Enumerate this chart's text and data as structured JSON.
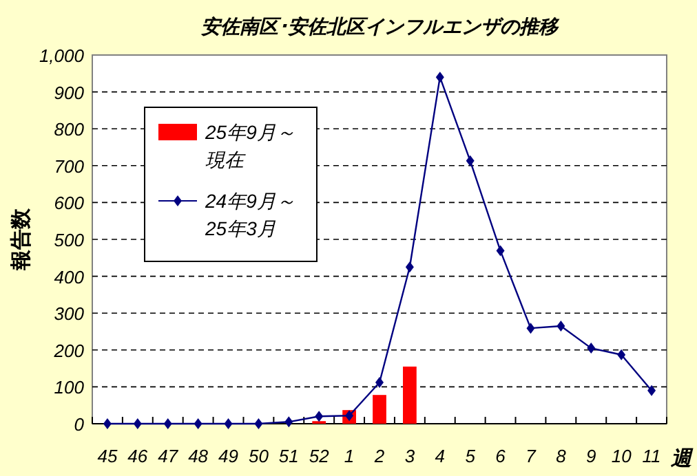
{
  "chart_data": {
    "type": "bar",
    "title": "安佐南区･安佐北区インフルエンザの推移",
    "xlabel": "週",
    "ylabel": "報告数",
    "categories": [
      "45",
      "46",
      "47",
      "48",
      "49",
      "50",
      "51",
      "52",
      "1",
      "2",
      "3",
      "4",
      "5",
      "6",
      "7",
      "8",
      "9",
      "10",
      "11"
    ],
    "series": [
      {
        "name": "25年9月～現在",
        "color": "#ff0000",
        "values": [
          null,
          null,
          null,
          null,
          null,
          null,
          null,
          7,
          37,
          78,
          155,
          null,
          null,
          null,
          null,
          null,
          null,
          null,
          null
        ]
      },
      {
        "name": "24年9月～25年3月",
        "type": "line",
        "color": "#000080",
        "marker": "diamond",
        "values": [
          0,
          0,
          0,
          0,
          0,
          0,
          5,
          20,
          22,
          112,
          425,
          940,
          713,
          469,
          259,
          265,
          205,
          187,
          90
        ]
      }
    ],
    "ylim": [
      0,
      1000
    ],
    "yticks": [
      0,
      100,
      200,
      300,
      400,
      500,
      600,
      700,
      800,
      900,
      {
        "value": 1000,
        "label": "1,000"
      }
    ],
    "grid": "y",
    "legend": "top left"
  }
}
